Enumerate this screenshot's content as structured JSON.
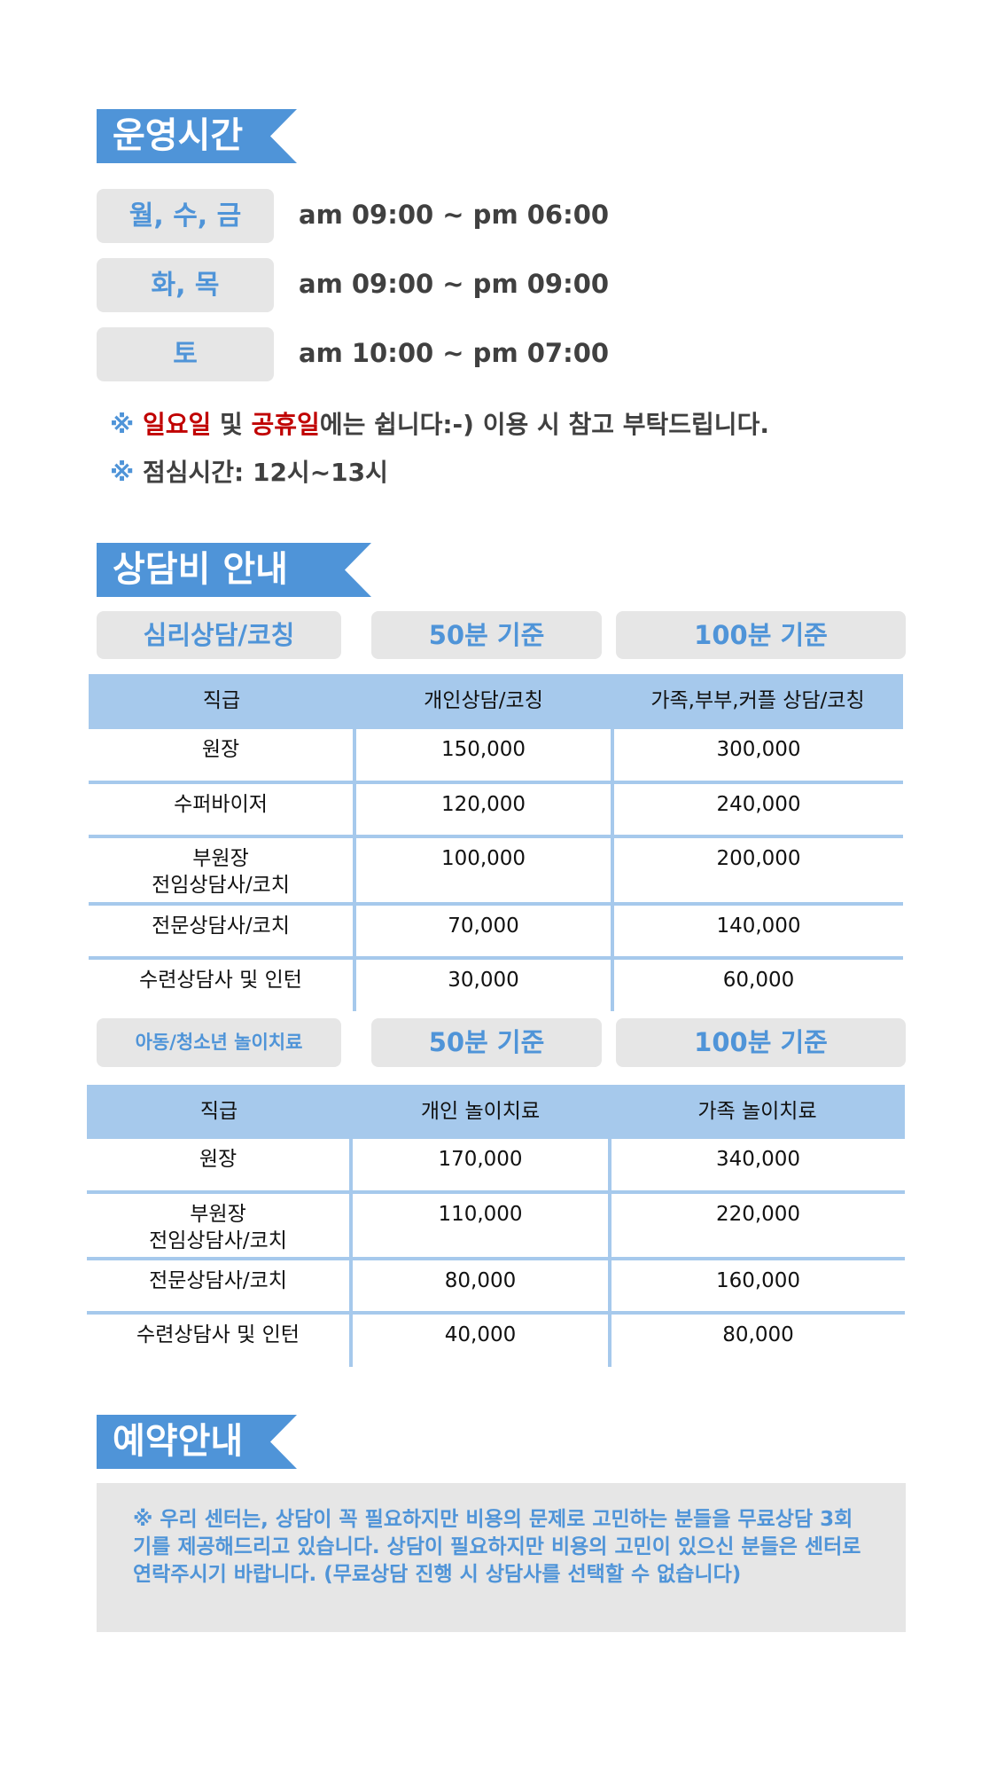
{
  "hours": {
    "title": "운영시간",
    "rows": [
      {
        "days": "월, 수, 금",
        "time": "am 09:00 ~ pm 06:00"
      },
      {
        "days": "화, 목",
        "time": "am 09:00 ~ pm 09:00"
      },
      {
        "days": "토",
        "time": "am 10:00 ~ pm 07:00"
      }
    ],
    "note1": {
      "mark": "※",
      "sun": "일요일",
      "and": " 및 ",
      "holiday": "공휴일",
      "rest": "에는 쉽니다:-) 이용 시 참고 부탁드립니다."
    },
    "note2": {
      "mark": "※",
      "text": "점심시간: 12시~13시"
    }
  },
  "fees": {
    "title": "상담비 안내",
    "table1": {
      "labels": [
        "심리상담/코칭",
        "50분 기준",
        "100분 기준"
      ],
      "headers": [
        "직급",
        "개인상담/코칭",
        "가족,부부,커플 상담/코칭"
      ],
      "rows": [
        [
          "원장",
          "150,000",
          "300,000"
        ],
        [
          "수퍼바이저",
          "120,000",
          "240,000"
        ],
        [
          "부원장\n전임상담사/코치",
          "100,000",
          "200,000"
        ],
        [
          "전문상담사/코치",
          "70,000",
          "140,000"
        ],
        [
          "수련상담사 및 인턴",
          "30,000",
          "60,000"
        ]
      ]
    },
    "table2": {
      "labels": [
        "아동/청소년 놀이치료",
        "50분 기준",
        "100분 기준"
      ],
      "headers": [
        "직급",
        "개인 놀이치료",
        "가족 놀이치료"
      ],
      "rows": [
        [
          "원장",
          "170,000",
          "340,000"
        ],
        [
          "부원장\n전임상담사/코치",
          "110,000",
          "220,000"
        ],
        [
          "전문상담사/코치",
          "80,000",
          "160,000"
        ],
        [
          "수련상담사 및 인턴",
          "40,000",
          "80,000"
        ]
      ]
    }
  },
  "reservation": {
    "title": "예약안내",
    "text": "※ 우리 센터는, 상담이 꼭 필요하지만 비용의 문제로 고민하는 분들을 무료상담 3회기를 제공해드리고 있습니다. 상담이 필요하지만 비용의 고민이 있으신 분들은 센터로 연락주시기 바랍니다. (무료상담 진행 시 상담사를 선택할 수 없습니다)"
  },
  "colors": {
    "accent": "#4f94d8",
    "table_header": "#a6c9ec",
    "pill": "#e6e6e6",
    "highlight": "#c00000"
  }
}
